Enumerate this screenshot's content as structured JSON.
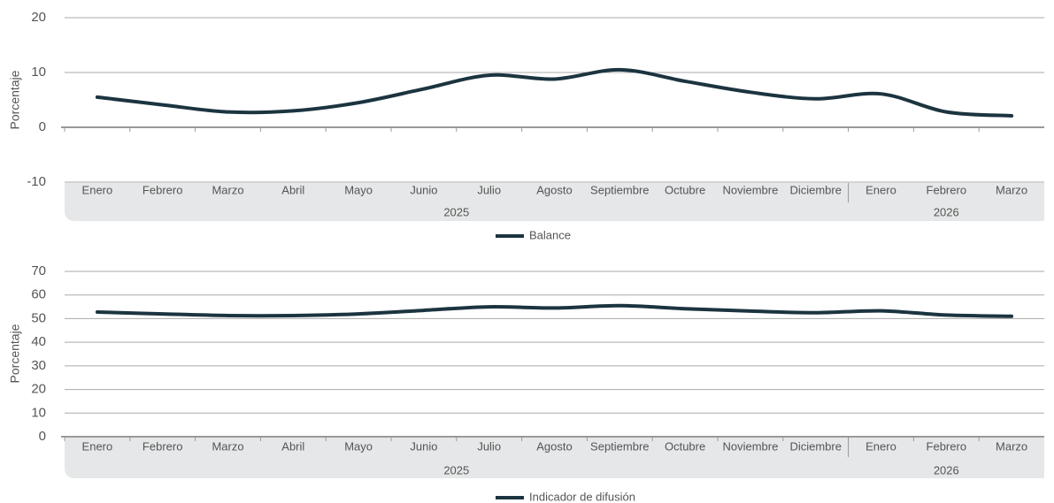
{
  "chart_data": [
    {
      "type": "line",
      "y_label": "Porcentaje",
      "groups": [
        {
          "label": "2025",
          "categories": [
            "Enero",
            "Febrero",
            "Marzo",
            "Abril",
            "Mayo",
            "Junio",
            "Julio",
            "Agosto",
            "Septiembre",
            "Octubre",
            "Noviembre",
            "Diciembre"
          ]
        },
        {
          "label": "2026",
          "categories": [
            "Enero",
            "Febrero",
            "Marzo"
          ]
        }
      ],
      "series": [
        {
          "name": "Balance",
          "color": "#1b3440",
          "values": [
            5.5,
            4.1,
            2.8,
            3.0,
            4.5,
            7.0,
            9.5,
            8.8,
            10.5,
            8.4,
            6.4,
            5.2,
            6.1,
            2.8,
            2.1
          ]
        }
      ],
      "ylim": [
        -10,
        20
      ],
      "yticks": [
        -10,
        0,
        10,
        20
      ],
      "grid": true
    },
    {
      "type": "line",
      "y_label": "Porcentaje",
      "groups": [
        {
          "label": "2025",
          "categories": [
            "Enero",
            "Febrero",
            "Marzo",
            "Abril",
            "Mayo",
            "Junio",
            "Julio",
            "Agosto",
            "Septiembre",
            "Octubre",
            "Noviembre",
            "Diciembre"
          ]
        },
        {
          "label": "2026",
          "categories": [
            "Enero",
            "Febrero",
            "Marzo"
          ]
        }
      ],
      "series": [
        {
          "name": "Indicador de difusión",
          "color": "#1b3440",
          "values": [
            52.8,
            52.0,
            51.3,
            51.3,
            52.0,
            53.5,
            55.0,
            54.5,
            55.5,
            54.2,
            53.2,
            52.5,
            53.3,
            51.5,
            51.0
          ]
        }
      ],
      "ylim": [
        0,
        70
      ],
      "yticks": [
        0,
        10,
        20,
        30,
        40,
        50,
        60,
        70
      ],
      "grid": true
    }
  ]
}
